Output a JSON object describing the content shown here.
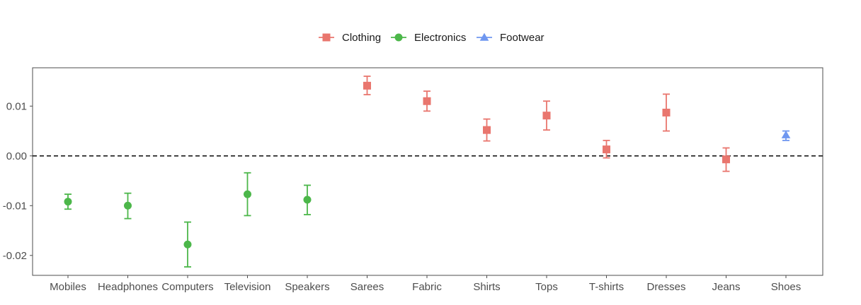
{
  "chart_data": {
    "type": "scatter",
    "title": "",
    "xlabel": "",
    "ylabel": "",
    "ylim": [
      -0.024,
      0.0177
    ],
    "y_ticks": [
      -0.02,
      -0.01,
      0.0,
      0.01
    ],
    "y_tick_labels": [
      "-0.02",
      "-0.01",
      "0.00",
      "0.01"
    ],
    "reference_line": {
      "y": 0,
      "style": "dashed"
    },
    "grid": false,
    "legend_position": "top",
    "categories": [
      "Mobiles",
      "Headphones",
      "Computers",
      "Television",
      "Speakers",
      "Sarees",
      "Fabric",
      "Shirts",
      "Tops",
      "T-shirts",
      "Dresses",
      "Jeans",
      "Shoes"
    ],
    "series": [
      {
        "name": "Clothing",
        "color": "#E9766E",
        "marker": "square",
        "points": [
          {
            "category": "Sarees",
            "value": 0.0141,
            "low": 0.0123,
            "high": 0.016
          },
          {
            "category": "Fabric",
            "value": 0.011,
            "low": 0.009,
            "high": 0.013
          },
          {
            "category": "Shirts",
            "value": 0.0052,
            "low": 0.003,
            "high": 0.0074
          },
          {
            "category": "Tops",
            "value": 0.0081,
            "low": 0.0052,
            "high": 0.011
          },
          {
            "category": "T-shirts",
            "value": 0.0013,
            "low": -0.0004,
            "high": 0.0031
          },
          {
            "category": "Dresses",
            "value": 0.0087,
            "low": 0.005,
            "high": 0.0124
          },
          {
            "category": "Jeans",
            "value": -0.0007,
            "low": -0.0031,
            "high": 0.0016
          }
        ]
      },
      {
        "name": "Electronics",
        "color": "#4CB74A",
        "marker": "circle",
        "points": [
          {
            "category": "Mobiles",
            "value": -0.0092,
            "low": -0.0107,
            "high": -0.0077
          },
          {
            "category": "Headphones",
            "value": -0.01,
            "low": -0.0126,
            "high": -0.0075
          },
          {
            "category": "Computers",
            "value": -0.0178,
            "low": -0.0223,
            "high": -0.0133
          },
          {
            "category": "Television",
            "value": -0.0077,
            "low": -0.012,
            "high": -0.0034
          },
          {
            "category": "Speakers",
            "value": -0.0088,
            "low": -0.0118,
            "high": -0.0059
          }
        ]
      },
      {
        "name": "Footwear",
        "color": "#6F97F0",
        "marker": "triangle",
        "points": [
          {
            "category": "Shoes",
            "value": 0.0042,
            "low": 0.0031,
            "high": 0.005
          }
        ]
      }
    ]
  }
}
